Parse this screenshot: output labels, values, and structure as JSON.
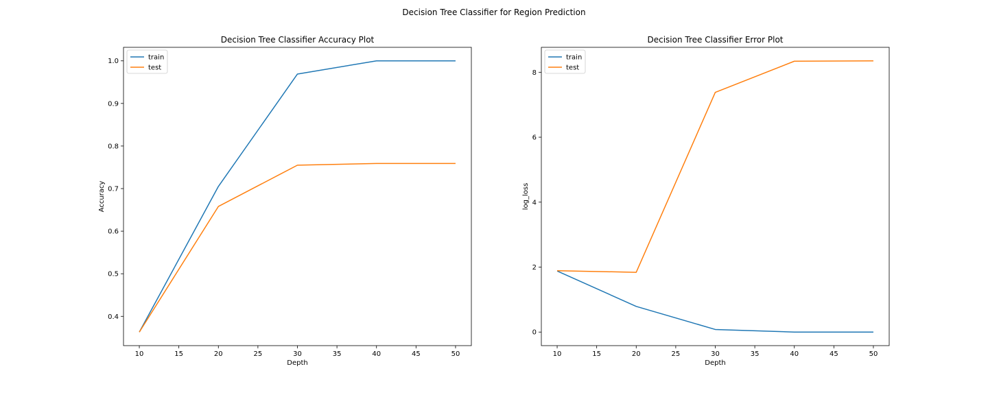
{
  "figure_title": "Decision Tree Classifier for Region Prediction",
  "chart_data": [
    {
      "type": "line",
      "title": "Decision Tree Classifier Accuracy Plot",
      "xlabel": "Depth",
      "ylabel": "Accuracy",
      "x": [
        10,
        20,
        30,
        40,
        50
      ],
      "series": [
        {
          "name": "train",
          "color": "#1f77b4",
          "values": [
            0.363,
            0.705,
            0.969,
            1.0,
            1.0
          ]
        },
        {
          "name": "test",
          "color": "#ff7f0e",
          "values": [
            0.363,
            0.658,
            0.755,
            0.759,
            0.759
          ]
        }
      ],
      "xlim": [
        8,
        52
      ],
      "ylim": [
        0.3312,
        1.0318
      ],
      "xticks": [
        10,
        15,
        20,
        25,
        30,
        35,
        40,
        45,
        50
      ],
      "xtick_labels": [
        "10",
        "15",
        "20",
        "25",
        "30",
        "35",
        "40",
        "45",
        "50"
      ],
      "yticks": [
        0.4,
        0.5,
        0.6,
        0.7,
        0.8,
        0.9,
        1.0
      ],
      "ytick_labels": [
        "0.4",
        "0.5",
        "0.6",
        "0.7",
        "0.8",
        "0.9",
        "1.0"
      ],
      "legend": "upper-left",
      "grid": false
    },
    {
      "type": "line",
      "title": "Decision Tree Classifier Error Plot",
      "xlabel": "Depth",
      "ylabel": "log_loss",
      "x": [
        10,
        20,
        30,
        40,
        50
      ],
      "series": [
        {
          "name": "train",
          "color": "#1f77b4",
          "values": [
            1.88,
            0.79,
            0.08,
            0.0,
            0.0
          ]
        },
        {
          "name": "test",
          "color": "#ff7f0e",
          "values": [
            1.89,
            1.84,
            7.38,
            8.34,
            8.35
          ]
        }
      ],
      "xlim": [
        8,
        52
      ],
      "ylim": [
        -0.4175,
        8.7675
      ],
      "xticks": [
        10,
        15,
        20,
        25,
        30,
        35,
        40,
        45,
        50
      ],
      "xtick_labels": [
        "10",
        "15",
        "20",
        "25",
        "30",
        "35",
        "40",
        "45",
        "50"
      ],
      "yticks": [
        0,
        2,
        4,
        6,
        8
      ],
      "ytick_labels": [
        "0",
        "2",
        "4",
        "6",
        "8"
      ],
      "legend": "upper-left",
      "grid": false
    }
  ]
}
